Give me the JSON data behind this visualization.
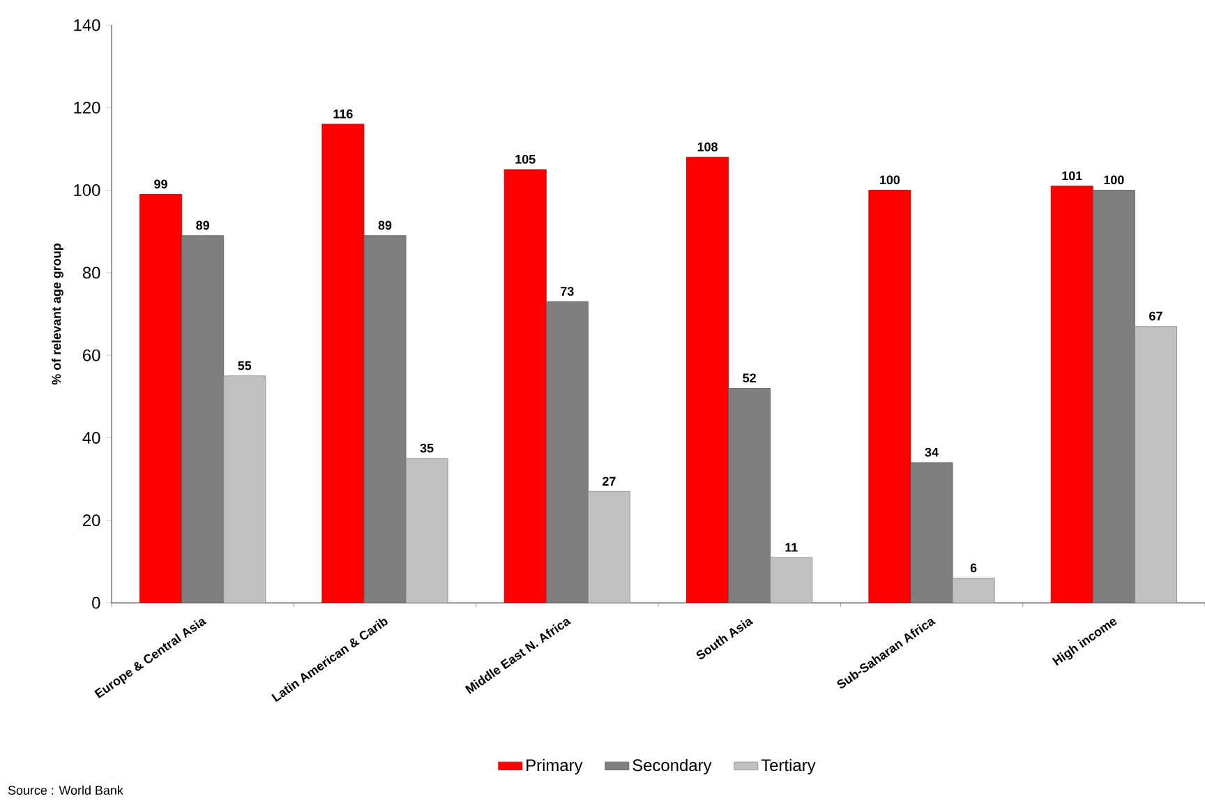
{
  "chart_data": {
    "type": "bar",
    "ylabel": "% of relevant age group",
    "categories": [
      "Europe & Central Asia",
      "Latin American & Carib",
      "Middle East N. Africa",
      "South Asia",
      "Sub-Saharan Africa",
      "High income"
    ],
    "series": [
      {
        "name": "Primary",
        "color": "#ff0000",
        "values": [
          99,
          116,
          105,
          108,
          100,
          101
        ]
      },
      {
        "name": "Secondary",
        "color": "#7f7f7f",
        "values": [
          89,
          89,
          73,
          52,
          34,
          100
        ]
      },
      {
        "name": "Tertiary",
        "color": "#c0c0c0",
        "values": [
          55,
          35,
          27,
          11,
          6,
          67
        ]
      }
    ],
    "ylim": [
      0,
      140
    ],
    "yticks": [
      0,
      20,
      40,
      60,
      80,
      100,
      120,
      140
    ],
    "data_labels": true,
    "legend": "bottom",
    "grid": false,
    "annotations": [
      "Source : World Bank"
    ]
  }
}
